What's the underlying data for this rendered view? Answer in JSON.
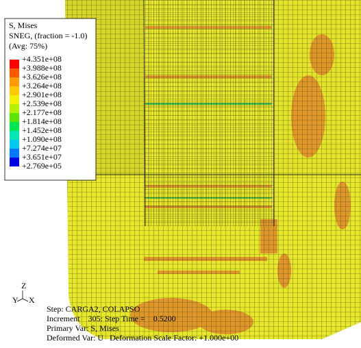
{
  "legend": {
    "title": "S, Mises",
    "subtitle": "SNEG, (fraction = -1.0)",
    "averaging": "(Avg: 75%)",
    "values": [
      "+4.351e+08",
      "+3.988e+08",
      "+3.626e+08",
      "+3.264e+08",
      "+2.901e+08",
      "+2.539e+08",
      "+2.177e+08",
      "+1.814e+08",
      "+1.452e+08",
      "+1.090e+08",
      "+7.274e+07",
      "+3.651e+07",
      "+2.769e+05"
    ]
  },
  "triad": {
    "z": "Z",
    "y": "Y",
    "x": "X"
  },
  "info": {
    "step": "Step: CARGA2, COLAPSO",
    "increment": "Increment    305: Step Time =    0.5200",
    "primary": "Primary Var: S, Mises",
    "deformed": "Deformed Var: U   Deformation Scale Factor: +1.000e+00"
  }
}
